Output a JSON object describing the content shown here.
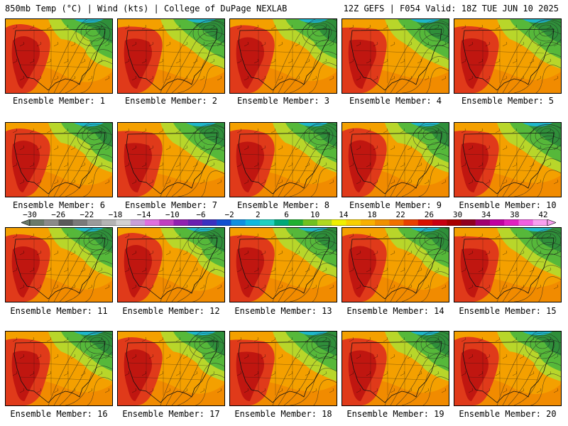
{
  "header": {
    "left": "850mb Temp (°C) | Wind (kts) | College of DuPage NEXLAB",
    "right": "12Z GEFS | F054 Valid: 18Z TUE JUN 10 2025"
  },
  "panels": [
    {
      "member": 1,
      "caption": "Ensemble Member: 1"
    },
    {
      "member": 2,
      "caption": "Ensemble Member: 2"
    },
    {
      "member": 3,
      "caption": "Ensemble Member: 3"
    },
    {
      "member": 4,
      "caption": "Ensemble Member: 4"
    },
    {
      "member": 5,
      "caption": "Ensemble Member: 5"
    },
    {
      "member": 6,
      "caption": "Ensemble Member: 6"
    },
    {
      "member": 7,
      "caption": "Ensemble Member: 7"
    },
    {
      "member": 8,
      "caption": "Ensemble Member: 8"
    },
    {
      "member": 9,
      "caption": "Ensemble Member: 9"
    },
    {
      "member": 10,
      "caption": "Ensemble Member: 10"
    },
    {
      "member": 11,
      "caption": "Ensemble Member: 11"
    },
    {
      "member": 12,
      "caption": "Ensemble Member: 12"
    },
    {
      "member": 13,
      "caption": "Ensemble Member: 13"
    },
    {
      "member": 14,
      "caption": "Ensemble Member: 14"
    },
    {
      "member": 15,
      "caption": "Ensemble Member: 15"
    },
    {
      "member": 16,
      "caption": "Ensemble Member: 16"
    },
    {
      "member": 17,
      "caption": "Ensemble Member: 17"
    },
    {
      "member": 18,
      "caption": "Ensemble Member: 18"
    },
    {
      "member": 19,
      "caption": "Ensemble Member: 19"
    },
    {
      "member": 20,
      "caption": "Ensemble Member: 20"
    }
  ],
  "colorbar": {
    "labels": [
      "−30",
      "−26",
      "−22",
      "−18",
      "−14",
      "−10",
      "−6",
      "−2",
      "2",
      "6",
      "10",
      "14",
      "18",
      "22",
      "26",
      "30",
      "34",
      "38",
      "42"
    ],
    "colors": [
      "#6a7a6a",
      "#8a8a8a",
      "#5a5a5a",
      "#7a7a7a",
      "#9a9a9a",
      "#b4b4b4",
      "#d2d2d2",
      "#c8a0d8",
      "#e070e0",
      "#c040c0",
      "#9020b0",
      "#6a20b0",
      "#3a30c0",
      "#1050d0",
      "#1090e0",
      "#10b8e0",
      "#20d0c0",
      "#00a878",
      "#20b030",
      "#70c020",
      "#b0d820",
      "#f0f000",
      "#f8d000",
      "#f8b000",
      "#f09000",
      "#f07000",
      "#e84000",
      "#d81000",
      "#c80010",
      "#a80000",
      "#900020",
      "#a00070",
      "#c000a0",
      "#e020c0",
      "#f060e0",
      "#f8a0f0"
    ],
    "palette": {
      "ocean": "#1fb6c9",
      "cool_green": "#2f8f3a",
      "green": "#56b83a",
      "yellow_green": "#b8d62a",
      "orange": "#f4a000",
      "dark_orange": "#ee7a00",
      "red": "#e03a1a",
      "dark_red": "#b80e0e"
    }
  }
}
